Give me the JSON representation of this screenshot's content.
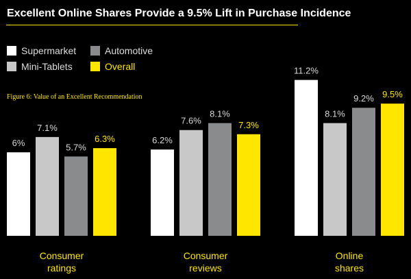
{
  "title": "Excellent Online Shares Provide a 9.5% Lift in Purchase Incidence",
  "caption": "Figure 6: Value of an Excellent Recommendation",
  "colors": {
    "supermarket": "#ffffff",
    "mini_tablets": "#c8c8c8",
    "automotive": "#8a8b8d",
    "overall": "#ffe600",
    "title_rule": "#ffe600"
  },
  "legend": [
    {
      "label": "Supermarket",
      "color": "#ffffff"
    },
    {
      "label": "Automotive",
      "color": "#8a8b8d"
    },
    {
      "label": "Mini-Tablets",
      "color": "#c8c8c8"
    },
    {
      "label": "Overall",
      "color": "#ffe600"
    }
  ],
  "chart_data": {
    "type": "bar",
    "title": "Excellent Online Shares Provide a 9.5% Lift in Purchase Incidence",
    "categories": [
      "Consumer\nratings",
      "Consumer\nreviews",
      "Online\nshares"
    ],
    "series": [
      {
        "name": "Supermarket",
        "color": "#ffffff",
        "values": [
          6.0,
          6.2,
          11.2
        ],
        "labels": [
          "6%",
          "6.2%",
          "11.2%"
        ]
      },
      {
        "name": "Mini-Tablets",
        "color": "#c8c8c8",
        "values": [
          7.1,
          7.6,
          8.1
        ],
        "labels": [
          "7.1%",
          "7.6%",
          "8.1%"
        ]
      },
      {
        "name": "Automotive",
        "color": "#8a8b8d",
        "values": [
          5.7,
          8.1,
          9.2
        ],
        "labels": [
          "5.7%",
          "8.1%",
          "9.2%"
        ]
      },
      {
        "name": "Overall",
        "color": "#ffe600",
        "values": [
          6.3,
          7.3,
          9.5
        ],
        "labels": [
          "6.3%",
          "7.3%",
          "9.5%"
        ]
      }
    ],
    "xlabel": "",
    "ylabel": "",
    "grid": false,
    "legend": "top-left"
  }
}
